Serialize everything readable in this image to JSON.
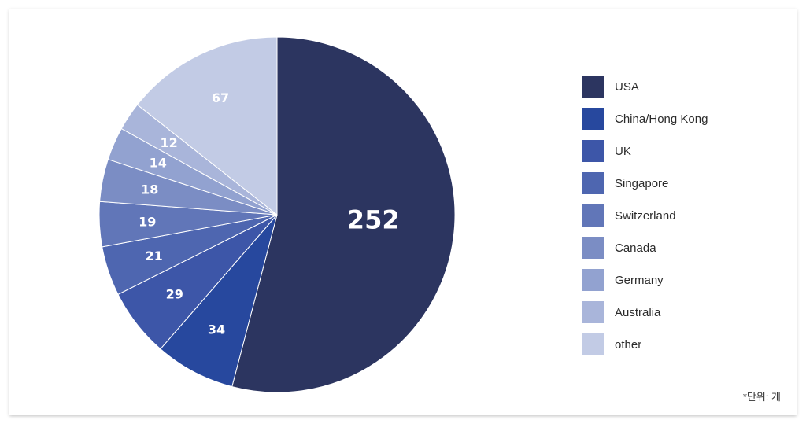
{
  "chart_data": {
    "type": "pie",
    "categories": [
      "USA",
      "China/Hong Kong",
      "UK",
      "Singapore",
      "Switzerland",
      "Canada",
      "Germany",
      "Australia",
      "other"
    ],
    "values": [
      252,
      34,
      29,
      21,
      19,
      18,
      14,
      12,
      67
    ],
    "colors": [
      "#2c3560",
      "#27489e",
      "#3d56a8",
      "#4e66b0",
      "#6176b8",
      "#7b8dc4",
      "#92a2d0",
      "#a9b5da",
      "#c2cbe5"
    ],
    "legend_position": "right"
  },
  "note": "*단위: 개"
}
